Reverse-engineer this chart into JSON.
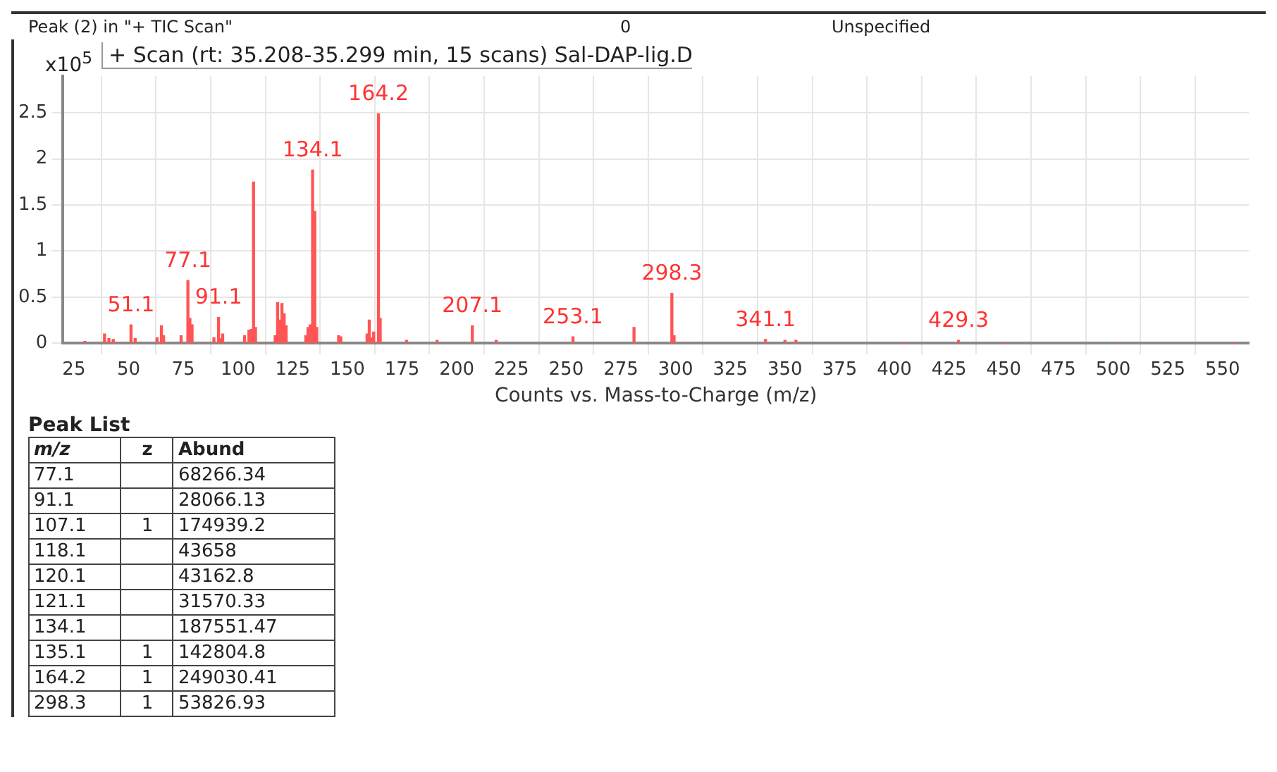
{
  "chart_data": {
    "type": "bar",
    "title": "+ Scan (rt: 35.208-35.299 min, 15 scans) Sal-DAP-lig.D",
    "xlabel": "Counts vs. Mass-to-Charge (m/z)",
    "ylabel": "x10$^{5}$",
    "x": [
      30,
      39,
      41,
      43,
      51.1,
      53,
      63,
      65,
      66,
      74,
      77.1,
      78,
      79,
      89,
      91.1,
      92,
      93,
      103,
      105,
      106,
      107.1,
      108,
      117,
      118.1,
      119,
      120.1,
      121.1,
      122,
      131,
      132,
      133,
      134.1,
      135.1,
      136,
      146,
      147,
      159,
      160,
      161,
      162,
      164.2,
      165,
      177,
      191,
      207.1,
      218,
      253.1,
      281,
      298.3,
      299.3,
      341.1,
      350,
      355,
      405,
      429.3,
      450,
      503,
      555
    ],
    "values": [
      0.02,
      0.1,
      0.05,
      0.04,
      0.2,
      0.05,
      0.06,
      0.19,
      0.08,
      0.08,
      0.68,
      0.27,
      0.2,
      0.06,
      0.28,
      0.05,
      0.1,
      0.08,
      0.14,
      0.15,
      1.75,
      0.17,
      0.08,
      0.44,
      0.25,
      0.43,
      0.32,
      0.19,
      0.08,
      0.17,
      0.2,
      1.88,
      1.43,
      0.17,
      0.08,
      0.07,
      0.1,
      0.25,
      0.06,
      0.12,
      2.49,
      0.27,
      0.03,
      0.03,
      0.19,
      0.03,
      0.07,
      0.17,
      0.54,
      0.08,
      0.04,
      0.03,
      0.03,
      0.01,
      0.03,
      0.01,
      0.01,
      0.01
    ],
    "color": "#ff5555",
    "xlim": [
      20,
      562
    ],
    "xticks": [
      25,
      50,
      75,
      100,
      125,
      150,
      175,
      200,
      225,
      250,
      275,
      300,
      325,
      350,
      375,
      400,
      425,
      450,
      475,
      500,
      525,
      550
    ],
    "ylim": [
      0,
      2.9
    ],
    "yticks": [
      0,
      0.5,
      1,
      1.5,
      2,
      2.5
    ],
    "grid": true,
    "annotations": [
      {
        "text": "51.1",
        "x": 51.1,
        "y": 0.2
      },
      {
        "text": "77.1",
        "x": 77.1,
        "y": 0.68
      },
      {
        "text": "91.1",
        "x": 91.1,
        "y": 0.28
      },
      {
        "text": "134.1",
        "x": 134.1,
        "y": 1.88
      },
      {
        "text": "164.2",
        "x": 164.2,
        "y": 2.49
      },
      {
        "text": "207.1",
        "x": 207.1,
        "y": 0.19
      },
      {
        "text": "253.1",
        "x": 253.1,
        "y": 0.07
      },
      {
        "text": "298.3",
        "x": 298.3,
        "y": 0.54
      },
      {
        "text": "341.1",
        "x": 341.1,
        "y": 0.04
      },
      {
        "text": "429.3",
        "x": 429.3,
        "y": 0.03
      },
      "Peak (2) in \"+ TIC Scan\"",
      "0",
      "Unspecified",
      "Peak List",
      "m/z",
      "z",
      "Abund",
      "77.1",
      null,
      "68266.34",
      "91.1",
      null,
      "28066.13",
      "107.1",
      "1",
      "174939.2",
      "118.1",
      null,
      "43658",
      "120.1",
      null,
      "43162.8",
      "121.1",
      null,
      "31570.33",
      "134.1",
      null,
      "187551.47",
      "135.1",
      "1",
      "142804.8",
      "164.2",
      "1",
      "249030.41",
      "298.3",
      "1",
      "53826.93"
    ]
  }
}
